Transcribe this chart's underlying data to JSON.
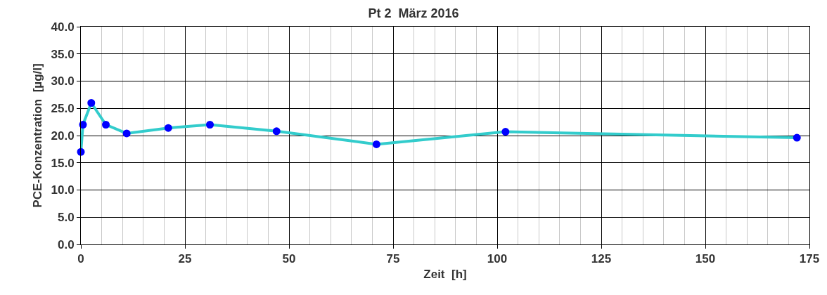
{
  "chart_data": {
    "type": "line",
    "title": "Pt 2  März 2016",
    "xlabel": "Zeit  [h]",
    "ylabel": "PCE-Konzentration  [µg/l]",
    "x": [
      0,
      0.5,
      2.5,
      6,
      11,
      21,
      31,
      47,
      71,
      102,
      172
    ],
    "series": [
      {
        "color": "#33cccc",
        "marker": "none",
        "values": [
          17.0,
          22.0,
          26.0,
          22.0,
          20.4,
          21.4,
          22.0,
          20.8,
          18.4,
          20.7,
          19.6
        ]
      },
      {
        "type": "scatter",
        "marker": "circle",
        "color": "#0000ff",
        "values": [
          17.0,
          22.0,
          26.0,
          22.0,
          20.4,
          21.4,
          22.0,
          20.8,
          18.4,
          20.7,
          19.6
        ]
      }
    ],
    "line_style": "solid",
    "grid": true,
    "xlim": [
      0,
      175
    ],
    "xticks": [
      0,
      25,
      50,
      75,
      100,
      125,
      150,
      175
    ],
    "ylim": [
      0,
      40
    ],
    "yticks": [
      {
        "value": 0,
        "label": "0.0"
      },
      {
        "value": 5,
        "label": "5.0"
      },
      {
        "value": 10,
        "label": "10.0"
      },
      {
        "value": 15,
        "label": "15.0"
      },
      {
        "value": 20,
        "label": "20.0"
      },
      {
        "value": 25,
        "label": "25.0"
      },
      {
        "value": 30,
        "label": "30.0"
      },
      {
        "value": 35,
        "label": "35.0"
      },
      {
        "value": 40,
        "label": "40.0"
      }
    ]
  }
}
